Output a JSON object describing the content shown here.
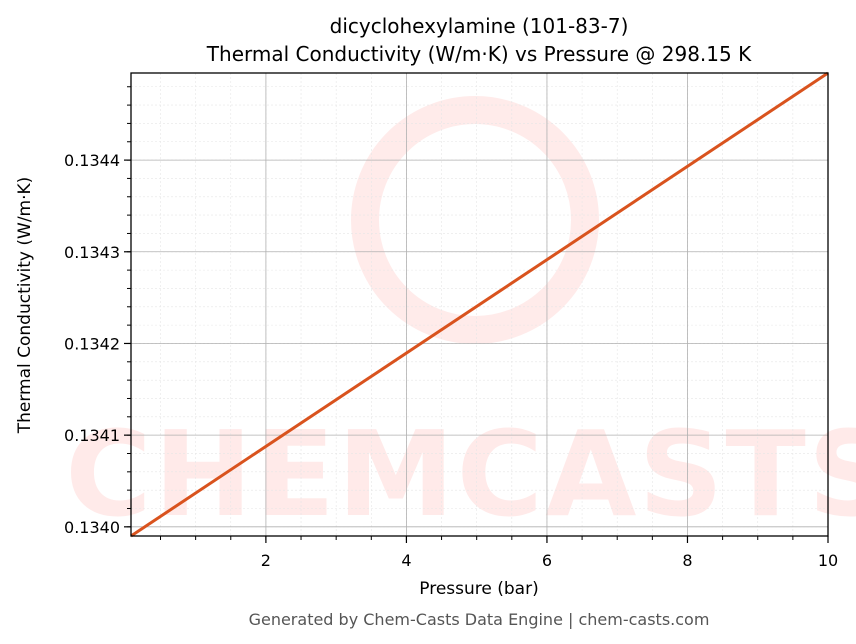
{
  "chart_data": {
    "type": "line",
    "title": "dicyclohexylamine (101-83-7)",
    "subtitle": "Thermal Conductivity (W/m·K) vs Pressure @ 298.15 K",
    "xlabel": "Pressure (bar)",
    "ylabel": "Thermal Conductivity (W/m·K)",
    "xlim": [
      0.08,
      10
    ],
    "ylim": [
      0.13399,
      0.134495
    ],
    "xticks": [
      2,
      4,
      6,
      8,
      10
    ],
    "xtick_labels": [
      "2",
      "4",
      "6",
      "8",
      "10"
    ],
    "yticks": [
      0.134,
      0.1341,
      0.1342,
      0.1343,
      0.1344
    ],
    "ytick_labels": [
      "0.1340",
      "0.1341",
      "0.1342",
      "0.1343",
      "0.1344"
    ],
    "grid": true,
    "series": [
      {
        "name": "Thermal Conductivity",
        "color": "#d9531e",
        "x": [
          0.08,
          10
        ],
        "y": [
          0.13399,
          0.134495
        ]
      }
    ],
    "footer": "Generated by Chem-Casts Data Engine | chem-casts.com",
    "watermark": "CHEMCASTS"
  }
}
